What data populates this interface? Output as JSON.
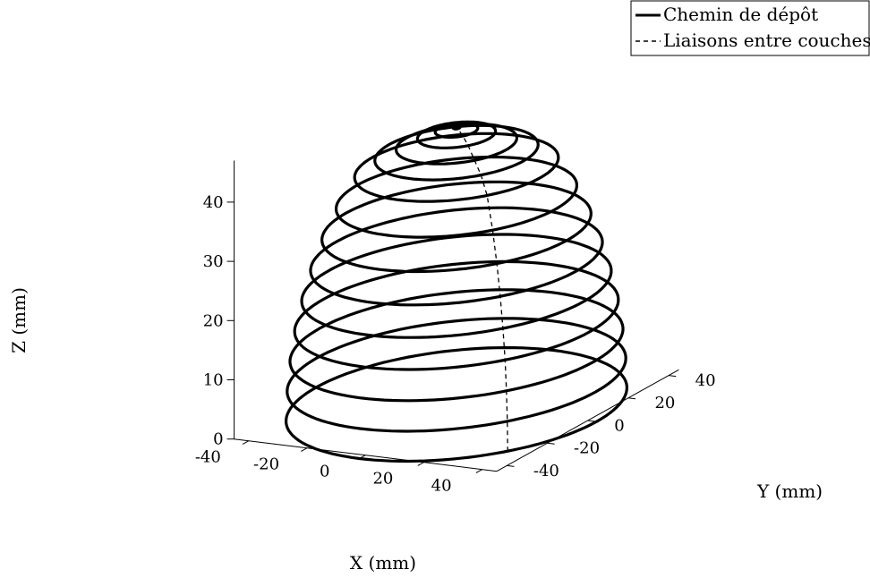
{
  "chart_data": {
    "type": "line",
    "projection": "3d",
    "title": "",
    "xlabel": "X (mm)",
    "ylabel": "Y (mm)",
    "zlabel": "Z (mm)",
    "xlim": [
      -45,
      45
    ],
    "ylim": [
      -45,
      45
    ],
    "zlim": [
      0,
      47
    ],
    "x_ticks": [
      "-40",
      "-20",
      "0",
      "20",
      "40"
    ],
    "y_ticks": [
      "-40",
      "-20",
      "0",
      "20",
      "40"
    ],
    "z_ticks": [
      "0",
      "10",
      "20",
      "30",
      "40"
    ],
    "grid": false,
    "legend_position": "top-right",
    "colors": {
      "line": "#000000",
      "background": "#ffffff"
    },
    "series": [
      {
        "name": "Chemin de dépôt",
        "style": "solid",
        "layers": [
          {
            "z": 0,
            "radius": 48
          },
          {
            "z": 5,
            "radius": 47.7
          },
          {
            "z": 10,
            "radius": 46.9
          },
          {
            "z": 15,
            "radius": 45.6
          },
          {
            "z": 20,
            "radius": 43.6
          },
          {
            "z": 25,
            "radius": 41.1
          },
          {
            "z": 30,
            "radius": 37.9
          },
          {
            "z": 35,
            "radius": 33.9
          },
          {
            "z": 40,
            "radius": 28.7
          },
          {
            "z": 42.5,
            "radius": 23
          },
          {
            "z": 44,
            "radius": 17
          },
          {
            "z": 45.5,
            "radius": 11
          },
          {
            "z": 46.3,
            "radius": 6
          },
          {
            "z": 46.8,
            "radius": 0.8
          }
        ]
      },
      {
        "name": "Liaisons entre couches",
        "style": "dashed",
        "points": [
          {
            "z": 0,
            "radius": 48
          },
          {
            "z": 5,
            "radius": 47.7
          },
          {
            "z": 10,
            "radius": 46.9
          },
          {
            "z": 15,
            "radius": 45.6
          },
          {
            "z": 20,
            "radius": 43.6
          },
          {
            "z": 25,
            "radius": 41.1
          },
          {
            "z": 30,
            "radius": 37.9
          },
          {
            "z": 35,
            "radius": 33.9
          },
          {
            "z": 40,
            "radius": 28.7
          },
          {
            "z": 42.5,
            "radius": 23
          },
          {
            "z": 44,
            "radius": 17
          },
          {
            "z": 45.5,
            "radius": 11
          },
          {
            "z": 46.3,
            "radius": 6
          },
          {
            "z": 46.8,
            "radius": 0.8
          }
        ]
      }
    ]
  }
}
